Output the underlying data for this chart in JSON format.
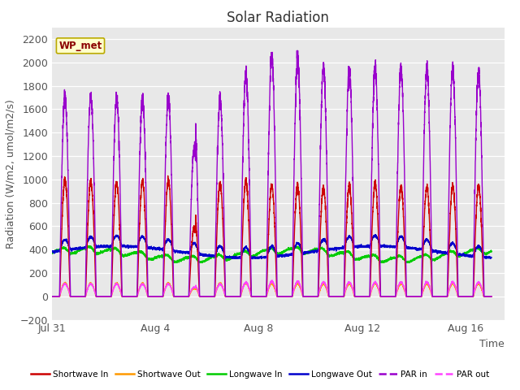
{
  "title": "Solar Radiation",
  "ylabel": "Radiation (W/m2, umol/m2/s)",
  "xlabel": "Time",
  "xlim_days": 17.5,
  "ylim": [
    -200,
    2300
  ],
  "yticks": [
    -200,
    0,
    200,
    400,
    600,
    800,
    1000,
    1200,
    1400,
    1600,
    1800,
    2000,
    2200
  ],
  "fig_bg": "#ffffff",
  "plot_bg": "#e8e8e8",
  "station_label": "WP_met",
  "legend_entries": [
    "Shortwave In",
    "Shortwave Out",
    "Longwave In",
    "Longwave Out",
    "PAR in",
    "PAR out"
  ],
  "legend_colors": [
    "#cc0000",
    "#ff9900",
    "#00cc00",
    "#0000cc",
    "#9900cc",
    "#ff44ff"
  ],
  "legend_styles": [
    "-",
    "-",
    "-",
    "-",
    "--",
    "--"
  ],
  "title_fontsize": 12,
  "label_fontsize": 9,
  "tick_fontsize": 9,
  "n_days": 17,
  "points_per_day": 288,
  "shortwave_in_peaks": [
    1000,
    980,
    970,
    975,
    990,
    760,
    960,
    990,
    950,
    940,
    930,
    940,
    960,
    940,
    930,
    940,
    940
  ],
  "par_in_peaks": [
    1700,
    1720,
    1700,
    1690,
    1700,
    1590,
    1680,
    1900,
    2050,
    2030,
    1950,
    1940,
    1940,
    1950,
    1940,
    1950,
    1920
  ],
  "xticklabels": [
    "Jul 31",
    "Aug 4",
    "Aug 8",
    "Aug 12",
    "Aug 16"
  ],
  "xtick_positions": [
    0,
    4,
    8,
    12,
    16
  ]
}
